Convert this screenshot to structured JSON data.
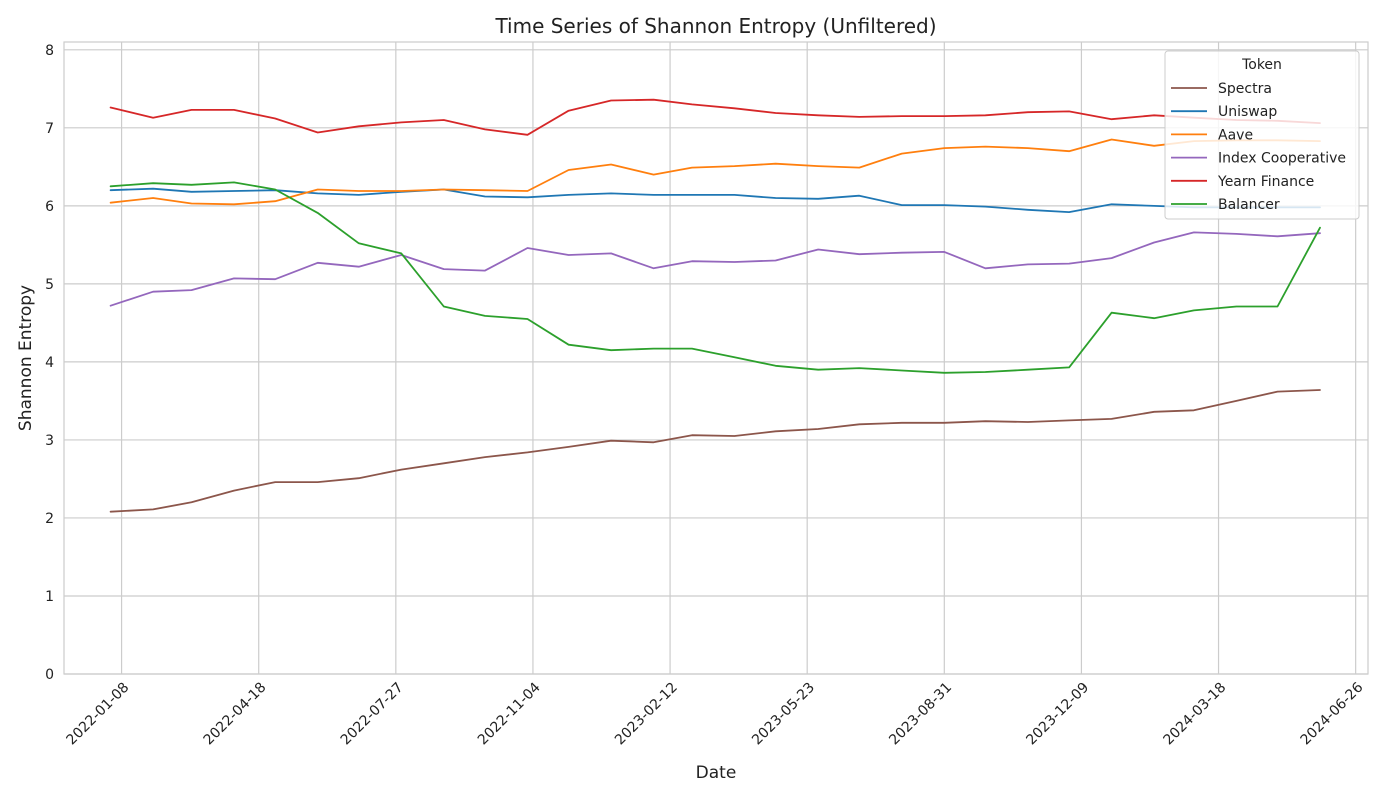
{
  "chart_data": {
    "type": "line",
    "title": "Time Series of Shannon Entropy (Unfiltered)",
    "xlabel": "Date",
    "ylabel": "Shannon Entropy",
    "ylim": [
      0,
      8.1
    ],
    "xlim": [
      "2021-11-27",
      "2024-07-05"
    ],
    "yticks": [
      0,
      1,
      2,
      3,
      4,
      5,
      6,
      7,
      8
    ],
    "xticks": [
      "2022-01-08",
      "2022-04-18",
      "2022-07-27",
      "2022-11-04",
      "2023-02-12",
      "2023-05-23",
      "2023-08-31",
      "2023-12-09",
      "2024-03-18",
      "2024-06-26"
    ],
    "grid": true,
    "legend": {
      "title": "Token",
      "placement": "top-right"
    },
    "x": [
      "2021-12-31",
      "2022-01-31",
      "2022-02-28",
      "2022-03-31",
      "2022-04-30",
      "2022-05-31",
      "2022-06-30",
      "2022-07-31",
      "2022-08-31",
      "2022-09-30",
      "2022-10-31",
      "2022-11-30",
      "2022-12-31",
      "2023-01-31",
      "2023-02-28",
      "2023-03-31",
      "2023-04-30",
      "2023-05-31",
      "2023-06-30",
      "2023-07-31",
      "2023-08-31",
      "2023-09-30",
      "2023-10-31",
      "2023-11-30",
      "2023-12-31",
      "2024-01-31",
      "2024-02-29",
      "2024-03-31",
      "2024-04-30",
      "2024-05-31"
    ],
    "series": [
      {
        "name": "Spectra",
        "color": "#8c564b",
        "values": [
          2.08,
          2.11,
          2.2,
          2.35,
          2.46,
          2.46,
          2.51,
          2.62,
          2.7,
          2.78,
          2.84,
          2.91,
          2.99,
          2.97,
          3.06,
          3.05,
          3.11,
          3.14,
          3.2,
          3.22,
          3.22,
          3.24,
          3.23,
          3.25,
          3.27,
          3.36,
          3.38,
          3.5,
          3.62,
          3.64
        ]
      },
      {
        "name": "Uniswap",
        "color": "#1f77b4",
        "values": [
          6.2,
          6.22,
          6.18,
          6.19,
          6.2,
          6.16,
          6.14,
          6.18,
          6.21,
          6.12,
          6.11,
          6.14,
          6.16,
          6.14,
          6.14,
          6.14,
          6.1,
          6.09,
          6.13,
          6.01,
          6.01,
          5.99,
          5.95,
          5.92,
          6.02,
          6.0,
          5.98,
          5.98,
          5.98,
          5.98
        ]
      },
      {
        "name": "Aave",
        "color": "#ff7f0e",
        "values": [
          6.04,
          6.1,
          6.03,
          6.02,
          6.06,
          6.21,
          6.19,
          6.19,
          6.21,
          6.2,
          6.19,
          6.46,
          6.53,
          6.4,
          6.49,
          6.51,
          6.54,
          6.51,
          6.49,
          6.67,
          6.74,
          6.76,
          6.74,
          6.7,
          6.85,
          6.77,
          6.83,
          6.84,
          6.84,
          6.83
        ]
      },
      {
        "name": "Index Cooperative",
        "color": "#9467bd",
        "values": [
          4.72,
          4.9,
          4.92,
          5.07,
          5.06,
          5.27,
          5.22,
          5.37,
          5.19,
          5.17,
          5.46,
          5.37,
          5.39,
          5.2,
          5.29,
          5.28,
          5.3,
          5.44,
          5.38,
          5.4,
          5.41,
          5.2,
          5.25,
          5.26,
          5.33,
          5.53,
          5.66,
          5.64,
          5.61,
          5.65
        ]
      },
      {
        "name": "Yearn Finance",
        "color": "#d62728",
        "values": [
          7.26,
          7.13,
          7.23,
          7.23,
          7.12,
          6.94,
          7.02,
          7.07,
          7.1,
          6.98,
          6.91,
          7.22,
          7.35,
          7.36,
          7.3,
          7.25,
          7.19,
          7.16,
          7.14,
          7.15,
          7.15,
          7.16,
          7.2,
          7.21,
          7.11,
          7.16,
          7.13,
          7.1,
          7.09,
          7.06
        ]
      },
      {
        "name": "Balancer",
        "color": "#2ca02c",
        "values": [
          6.25,
          6.29,
          6.27,
          6.3,
          6.21,
          5.91,
          5.52,
          5.39,
          4.71,
          4.59,
          4.55,
          4.22,
          4.15,
          4.17,
          4.17,
          4.06,
          3.95,
          3.9,
          3.92,
          3.89,
          3.86,
          3.87,
          3.9,
          3.93,
          4.63,
          4.56,
          4.66,
          4.71,
          4.71,
          5.72
        ]
      }
    ]
  }
}
